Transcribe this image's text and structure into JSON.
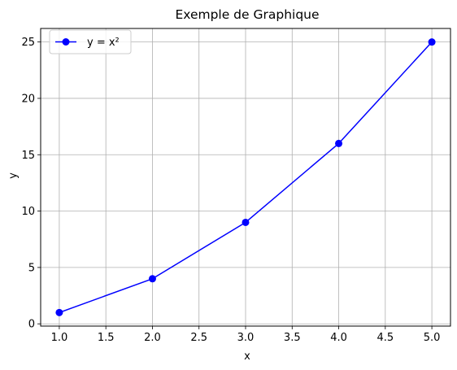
{
  "chart_data": {
    "type": "line",
    "title": "Exemple de Graphique",
    "xlabel": "x",
    "ylabel": "y",
    "x": [
      1,
      2,
      3,
      4,
      5
    ],
    "series": [
      {
        "name": "y = x²",
        "values": [
          1,
          4,
          9,
          16,
          25
        ],
        "color": "#0000ff",
        "marker": "circle"
      }
    ],
    "xlim": [
      0.8,
      5.2
    ],
    "ylim": [
      -0.2,
      26.2
    ],
    "xticks": [
      1.0,
      1.5,
      2.0,
      2.5,
      3.0,
      3.5,
      4.0,
      4.5,
      5.0
    ],
    "xtick_labels": [
      "1.0",
      "1.5",
      "2.0",
      "2.5",
      "3.0",
      "3.5",
      "4.0",
      "4.5",
      "5.0"
    ],
    "yticks": [
      0,
      5,
      10,
      15,
      20,
      25
    ],
    "ytick_labels": [
      "0",
      "5",
      "10",
      "15",
      "20",
      "25"
    ],
    "grid": true,
    "grid_color": "#b0b0b0",
    "legend": "top-left"
  }
}
